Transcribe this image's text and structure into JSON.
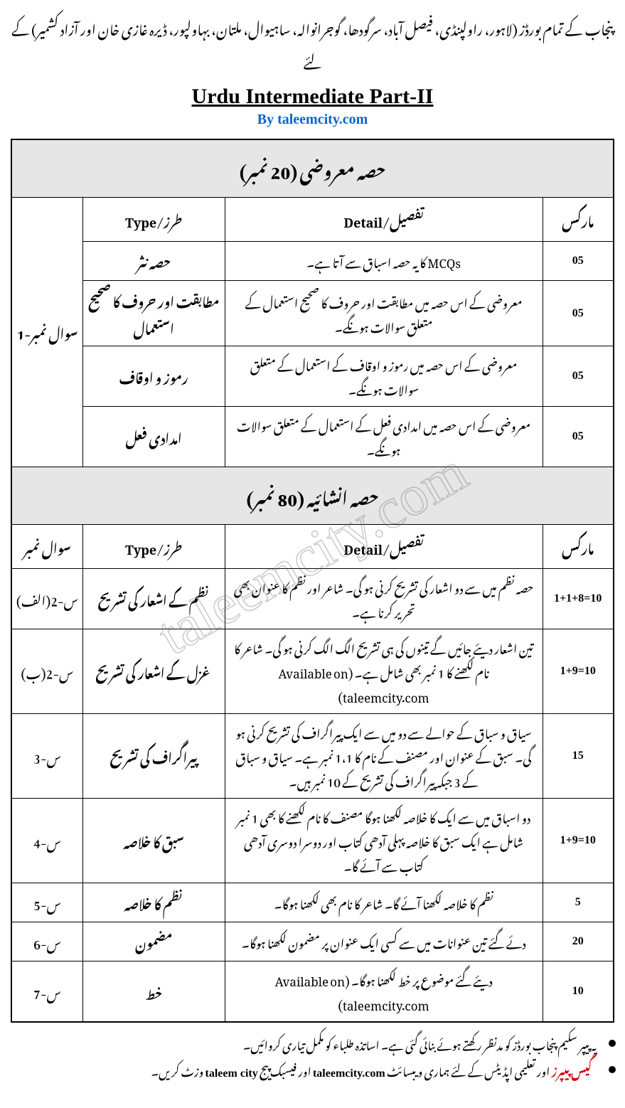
{
  "top_line": "پنجاب کے تمام بورڈز (لاہور، راولپنڈی، فیصل آباد، سرگودھا، گوجرانوالہ، ساہیوال، ملتان، بہاولپور، ڈیرہ غازی خان اور آزاد کشمیر) کے لئے",
  "main_title": "Urdu Intermediate Part-II",
  "byline": "By taleemcity.com",
  "watermark": "taleemcity.com",
  "section1": {
    "header": "حصہ معروضی (20 نمبر)",
    "cols": {
      "qno": "سوال نمبر-1",
      "type": "طرز/Type",
      "detail": "تفصیل/Detail",
      "marks": "مارکس"
    },
    "rows": [
      {
        "type": "حصہ نثر",
        "detail": "MCQs کا یہ حصہ اسباق سے آتا ہے۔",
        "marks": "05"
      },
      {
        "type": "مطابقت اور حروف کا صحیح استعمال",
        "detail": "معروضی کے اس حصہ میں مطابقت اور حروف کا صحیح استعمال کے متعلق سوالات ہونگے۔",
        "marks": "05"
      },
      {
        "type": "رموز و اوقاف",
        "detail": "معروضی کے اس حصہ میں رموز و اوقاف کے استعمال کے متعلق سوالات ہونگے۔",
        "marks": "05"
      },
      {
        "type": "امدادی فعل",
        "detail": "معروضی کے اس حصہ میں امدادی فعل کے استعمال کے متعلق سوالات ہونگے۔",
        "marks": "05"
      }
    ]
  },
  "section2": {
    "header": "حصہ انشائیہ (80 نمبر)",
    "cols": {
      "qno": "سوال نمبر",
      "type": "طرز/Type",
      "detail": "تفصیل/Detail",
      "marks": "مارکس"
    },
    "rows": [
      {
        "qno": "س-2(الف)",
        "type": "نظم کے اشعار کی تشریح",
        "detail": "حصہ نظم میں سے دو اشعار کی تشریح کرنی ہو گی۔ شاعر اور نظم کا عنوان بھی تحریر کرنا ہے۔",
        "marks": "1+1+8=10"
      },
      {
        "qno": "س-2(ب)",
        "type": "غزل کے اشعار کی تشریح",
        "detail": "تین اشعار دیئے جائیں گے تینوں کی ہی تشریح الگ الگ کرنی ہو گی۔ شاعر کا نام لکھنے کا 1 نمبر بھی شامل ہے۔ (Available on taleemcity.com)",
        "marks": "1+9=10"
      },
      {
        "qno": "س-3",
        "type": "پیراگراف کی تشریح",
        "detail": "سیاق و سباق کے حوالے سے دو میں سے ایک پیراگراف کی تشریح کرنی ہو گی۔ سبق کے عنوان اور مصنف کے نام کا 1،1 نمبر ہے۔ سیاق و سباق کے 3 جبکہ پیراگراف کی تشریح کے 10 نمبر ہیں۔",
        "marks": "15"
      },
      {
        "qno": "س-4",
        "type": "سبق کا خلاصہ",
        "detail": "دو اسباق میں سے ایک کا خلاصہ لکھنا ہوگا مصنف کا نام لکھنے کا بھی 1 نمبر شامل ہے ایک سبق کا خلاصہ پہلی آدھی کتاب اور دوسرا دوسری آدھی کتاب سے آئے گا۔",
        "marks": "1+9=10"
      },
      {
        "qno": "س-5",
        "type": "نظم کا خلاصہ",
        "detail": "نظم کا خلاصہ لکھنا آئے گا۔ شاعر کا نام بھی لکھنا ہوگا۔",
        "marks": "5"
      },
      {
        "qno": "س-6",
        "type": "مضمون",
        "detail": "دئے گئے تین عنوانات میں سے کسی ایک عنوان پر مضمون لکھنا ہوگا۔",
        "marks": "20"
      },
      {
        "qno": "س-7",
        "type": "خط",
        "detail": "دیئے گئے موضوع پر خط لکھنا ہوگا۔ (Available on taleemcity.com)",
        "marks": "10"
      }
    ]
  },
  "footer": {
    "note1": "یہ پیپر سکیم پنجاب بورڈز کو مدنظر رکھتے ہوئے بنائی گئی ہے۔ اساتذہ طلباء کو مکمل تیاری کروائیں۔",
    "note2_red": "گیس پیپرز",
    "note2_rest": " اور تعلیمی اپڈیٹس کے لئے ہماری ویبسائٹ ",
    "note2_site1": "taleemcity.com",
    "note2_mid": " اور فیسبک پیج ",
    "note2_site2": "taleem city",
    "note2_end": " وزٹ کریں۔"
  }
}
